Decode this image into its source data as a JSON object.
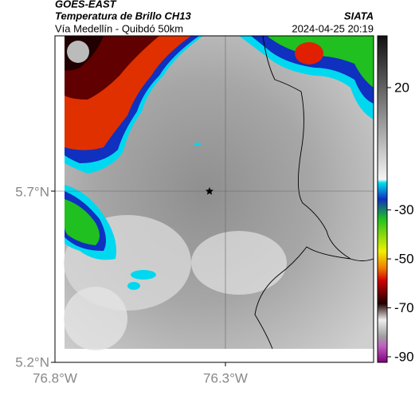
{
  "header": {
    "title": "GOES-EAST",
    "subtitle": "Temperatura de Brillo CH13",
    "route": "Vía Medellín - Quibdó 50km",
    "source": "SIATA",
    "datetime": "2024-04-25 20:19"
  },
  "axes": {
    "y_labels": [
      "5.7°N",
      "5.2°N"
    ],
    "x_labels": [
      "76.8°W",
      "76.3°W"
    ]
  },
  "colorbar": {
    "ticks": [
      20,
      -30,
      -50,
      -70,
      -90
    ]
  }
}
